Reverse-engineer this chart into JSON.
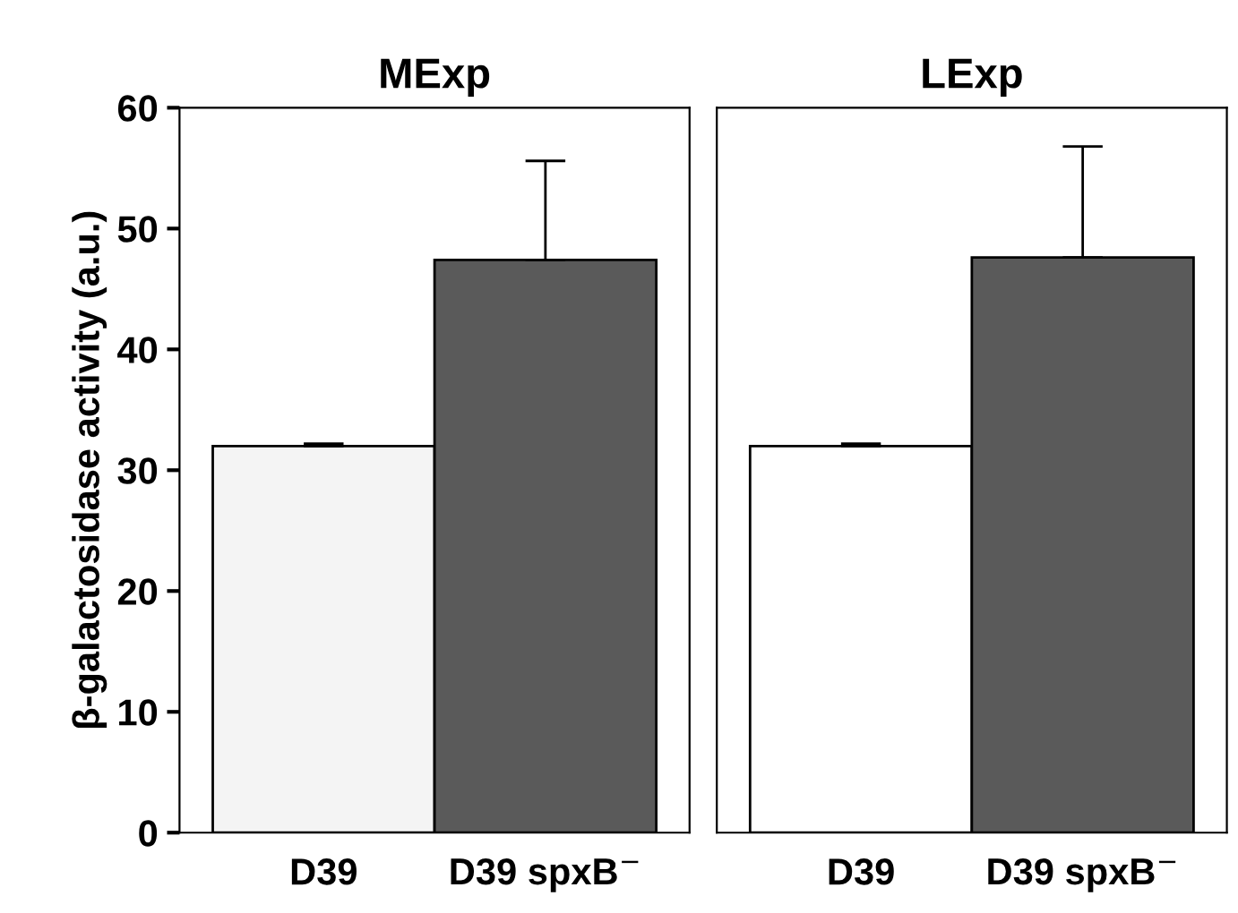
{
  "chart_data": [
    {
      "type": "bar",
      "title": "MExp",
      "ylabel": "β-galactosidase activity (a.u.)",
      "categories": [
        "D39",
        "D39 spxB$^{−}$"
      ],
      "values": [
        32.0,
        47.4
      ],
      "colors": [
        "#f4f4f4",
        "#5a5a5a"
      ],
      "errors": [
        [
          32.0,
          32.2
        ],
        [
          47.4,
          55.6
        ]
      ],
      "ylim": [
        0,
        60
      ],
      "yticks": [
        0,
        10,
        20,
        30,
        40,
        50,
        60
      ]
    },
    {
      "type": "bar",
      "title": "LExp",
      "categories": [
        "D39",
        "D39 spxB$^{−}$"
      ],
      "values": [
        32.0,
        47.6
      ],
      "colors": [
        "#ffffff",
        "#5a5a5a"
      ],
      "errors": [
        [
          32.0,
          32.2
        ],
        [
          47.6,
          56.8
        ]
      ],
      "ylim": [
        0,
        60
      ],
      "tick_labels": "x"
    }
  ]
}
